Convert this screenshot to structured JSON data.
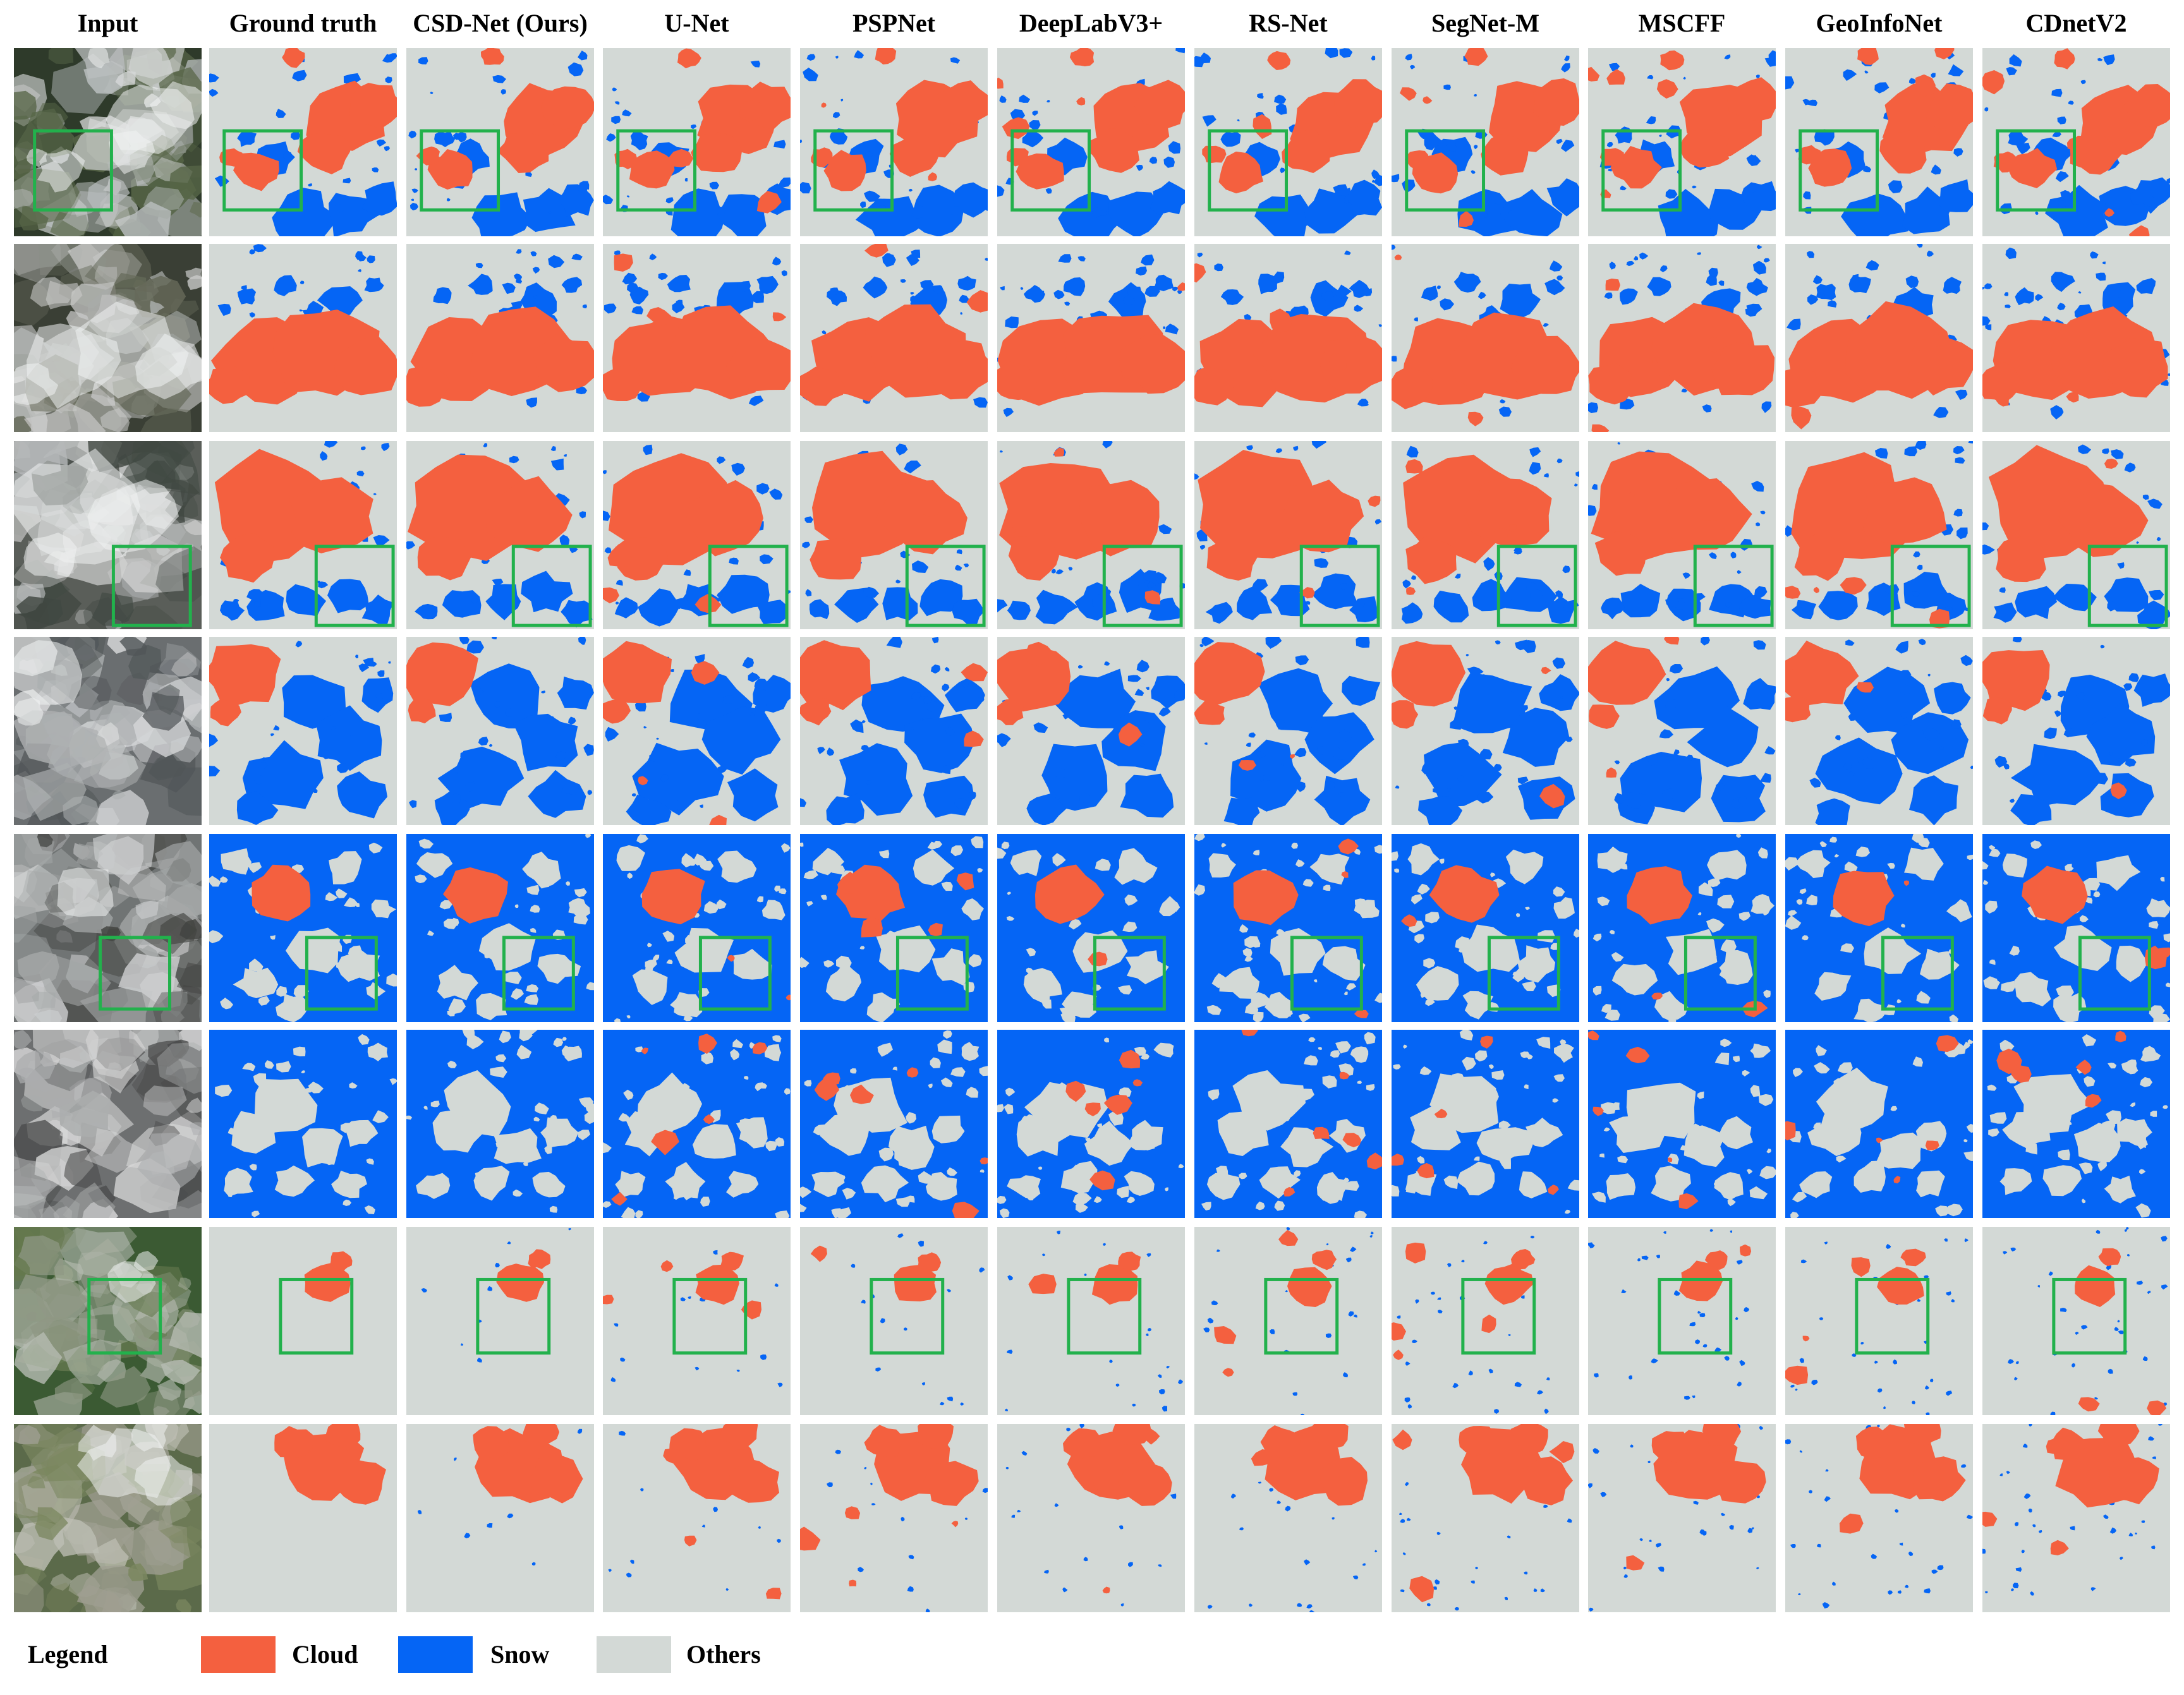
{
  "figure": {
    "columns": [
      "Input",
      "Ground truth",
      "CSD-Net (Ours)",
      "U-Net",
      "PSPNet",
      "DeepLabV3+",
      "RS-Net",
      "SegNet-M",
      "MSCFF",
      "GeoInfoNet",
      "CDnetV2"
    ],
    "rows": 8,
    "legend": {
      "title": "Legend",
      "items": [
        {
          "label": "Cloud",
          "color": "#f4603f"
        },
        {
          "label": "Snow",
          "color": "#0565f5"
        },
        {
          "label": "Others",
          "color": "#d3d9d6"
        }
      ]
    },
    "highlight_color": "#22b14c",
    "input_palettes": [
      [
        "#2e3a2a",
        "#c9cccf",
        "#e8e9ea",
        "#5b6a4a"
      ],
      [
        "#3a3f35",
        "#b7bab8",
        "#dcdcdc",
        "#6b6f5e"
      ],
      [
        "#5a5e59",
        "#dfe0e0",
        "#bfc2c4",
        "#3e4640"
      ],
      [
        "#6a6e70",
        "#e2e3e4",
        "#b5b8b9",
        "#4f5456"
      ],
      [
        "#707474",
        "#d8d9da",
        "#a9acac",
        "#3e3f3c"
      ],
      [
        "#6d6f70",
        "#e4e4e4",
        "#b2b4b5",
        "#464747"
      ],
      [
        "#3b5a33",
        "#9aa08f",
        "#c3c6bf",
        "#6a7d52"
      ],
      [
        "#5b6a4a",
        "#a7a59a",
        "#c9c8c0",
        "#7f8b63"
      ]
    ]
  }
}
